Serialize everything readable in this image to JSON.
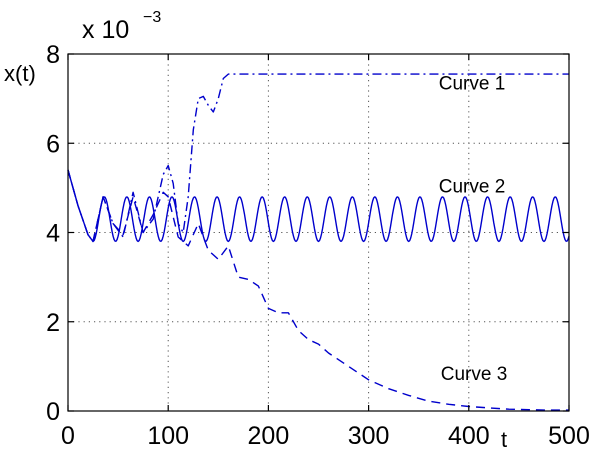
{
  "chart_data": {
    "type": "line",
    "xlabel": "t",
    "ylabel": "x(t)",
    "y_multiplier": {
      "base": "x 10",
      "exponent": "−3"
    },
    "xlim": [
      0,
      500
    ],
    "ylim": [
      0,
      8
    ],
    "xticks": [
      0,
      100,
      200,
      300,
      400,
      500
    ],
    "yticks": [
      0,
      2,
      4,
      6,
      8
    ],
    "xtick_labels": [
      "0",
      "100",
      "200",
      "300",
      "400",
      "500"
    ],
    "ytick_labels": [
      "0",
      "2",
      "4",
      "6",
      "8"
    ],
    "grid": true,
    "color": "#0000cc",
    "series": [
      {
        "name": "Curve 1",
        "style": "dashdot",
        "x": [
          0,
          10,
          20,
          25,
          35,
          45,
          55,
          65,
          75,
          85,
          95,
          100,
          105,
          110,
          115,
          120,
          125,
          130,
          135,
          140,
          145,
          150,
          155,
          160,
          170,
          200,
          300,
          400,
          500
        ],
        "y": [
          5.4,
          4.6,
          3.95,
          3.8,
          4.8,
          4.2,
          3.9,
          4.9,
          4.0,
          4.3,
          5.3,
          5.5,
          5.1,
          4.2,
          4.0,
          4.8,
          6.3,
          7.0,
          7.05,
          6.85,
          6.7,
          7.0,
          7.45,
          7.55,
          7.55,
          7.55,
          7.55,
          7.55,
          7.55
        ]
      },
      {
        "name": "Curve 2",
        "style": "solid",
        "oscillation": {
          "center": 4.3,
          "amplitude": 0.5,
          "period": 22.5
        },
        "x": [
          0,
          10,
          20,
          25
        ],
        "y": [
          5.4,
          4.6,
          3.95,
          3.8
        ]
      },
      {
        "name": "Curve 3",
        "style": "dashed",
        "x": [
          0,
          10,
          20,
          25,
          35,
          45,
          55,
          65,
          75,
          85,
          95,
          100,
          110,
          120,
          130,
          140,
          150,
          160,
          170,
          180,
          190,
          200,
          210,
          220,
          230,
          240,
          250,
          260,
          280,
          300,
          320,
          340,
          360,
          380,
          400,
          420,
          440,
          460,
          480,
          500
        ],
        "y": [
          5.4,
          4.6,
          3.95,
          3.8,
          4.8,
          4.2,
          3.95,
          4.8,
          4.0,
          4.4,
          4.9,
          4.8,
          3.9,
          3.7,
          4.2,
          3.6,
          3.4,
          3.7,
          3.0,
          2.95,
          2.8,
          2.3,
          2.2,
          2.2,
          1.8,
          1.6,
          1.5,
          1.3,
          1.0,
          0.7,
          0.5,
          0.35,
          0.22,
          0.15,
          0.1,
          0.07,
          0.04,
          0.03,
          0.02,
          0.02
        ]
      }
    ],
    "annotations": [
      {
        "text": "Curve 1",
        "x": 370,
        "y": 7.2
      },
      {
        "text": "Curve 2",
        "x": 370,
        "y": 4.9
      },
      {
        "text": "Curve 3",
        "x": 372,
        "y": 0.7
      }
    ]
  }
}
